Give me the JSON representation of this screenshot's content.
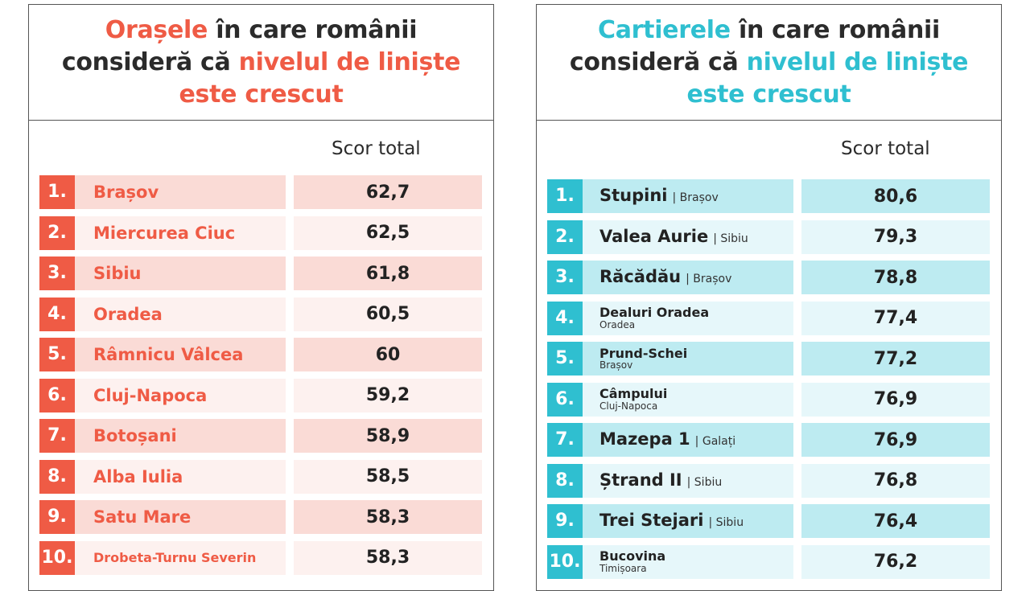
{
  "left_panel": {
    "title_parts": [
      "Orașele",
      " în care românii consideră că ",
      "nivelul de liniște este crescut"
    ],
    "score_header": "Scor total",
    "rows": [
      {
        "rank": "1.",
        "name": "Brașov",
        "score": "62,7"
      },
      {
        "rank": "2.",
        "name": "Miercurea Ciuc",
        "score": "62,5"
      },
      {
        "rank": "3.",
        "name": "Sibiu",
        "score": "61,8"
      },
      {
        "rank": "4.",
        "name": "Oradea",
        "score": "60,5"
      },
      {
        "rank": "5.",
        "name": "Râmnicu Vâlcea",
        "score": "60"
      },
      {
        "rank": "6.",
        "name": "Cluj-Napoca",
        "score": "59,2"
      },
      {
        "rank": "7.",
        "name": "Botoșani",
        "score": "58,9"
      },
      {
        "rank": "8.",
        "name": "Alba Iulia",
        "score": "58,5"
      },
      {
        "rank": "9.",
        "name": "Satu Mare",
        "score": "58,3"
      },
      {
        "rank": "10.",
        "name": "Drobeta-Turnu Severin",
        "score": "58,3"
      }
    ]
  },
  "right_panel": {
    "title_parts": [
      "Cartierele",
      " în care românii consideră că ",
      "nivelul de liniște este crescut"
    ],
    "score_header": "Scor total",
    "rows": [
      {
        "rank": "1.",
        "name": "Stupini",
        "city": "Brașov",
        "score": "80,6"
      },
      {
        "rank": "2.",
        "name": "Valea Aurie",
        "city": "Sibiu",
        "score": "79,3"
      },
      {
        "rank": "3.",
        "name": "Răcădău",
        "city": "Brașov",
        "score": "78,8"
      },
      {
        "rank": "4.",
        "name": "Dealuri Oradea",
        "city_below": "Oradea",
        "score": "77,4"
      },
      {
        "rank": "5.",
        "name": "Prund-Schei",
        "city_below": "Brașov",
        "score": "77,2"
      },
      {
        "rank": "6.",
        "name": "Câmpului",
        "city_below": "Cluj-Napoca",
        "score": "76,9"
      },
      {
        "rank": "7.",
        "name": "Mazepa 1",
        "city": "Galați",
        "score": "76,9"
      },
      {
        "rank": "8.",
        "name": "Ștrand II",
        "city": "Sibiu",
        "score": "76,8"
      },
      {
        "rank": "9.",
        "name": "Trei Stejari",
        "city": "Sibiu",
        "score": "76,4"
      },
      {
        "rank": "10.",
        "name": "Bucovina",
        "city_below": "Timișoara",
        "score": "76,2"
      }
    ]
  },
  "colors": {
    "orange": "#ef5b45",
    "teal": "#2fbfd0"
  }
}
